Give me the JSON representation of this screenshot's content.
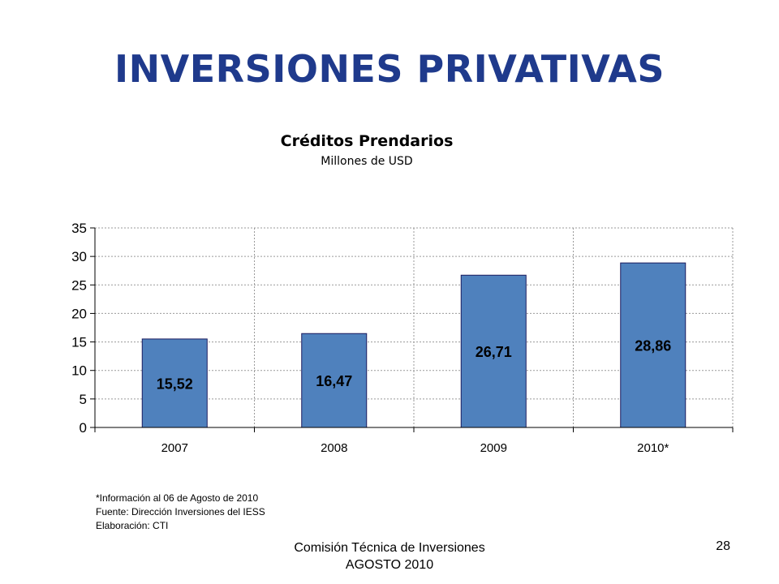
{
  "slide": {
    "title": "INVERSIONES PRIVATIVAS",
    "page_number": "28"
  },
  "chart_data": {
    "type": "bar",
    "title": "Créditos Prendarios",
    "subtitle": "Millones de USD",
    "categories": [
      "2007",
      "2008",
      "2009",
      "2010*"
    ],
    "values": [
      15.52,
      16.47,
      26.71,
      28.86
    ],
    "data_labels": [
      "15,52",
      "16,47",
      "26,71",
      "28,86"
    ],
    "ylim": [
      0,
      35
    ],
    "yticks": [
      0,
      5,
      10,
      15,
      20,
      25,
      30,
      35
    ],
    "xlabel": "",
    "ylabel": "",
    "grid": true,
    "legend": "none",
    "colors": {
      "bar": "#4f81bd",
      "bar_border": "#1a1a5e",
      "grid": "#9a9a9a",
      "axis": "#000000"
    }
  },
  "notes": [
    "*Información al 06 de Agosto de 2010",
    "Fuente: Dirección Inversiones del IESS",
    "Elaboración: CTI"
  ],
  "footer": {
    "line1": "Comisión Técnica de Inversiones",
    "line2": "AGOSTO 2010"
  }
}
